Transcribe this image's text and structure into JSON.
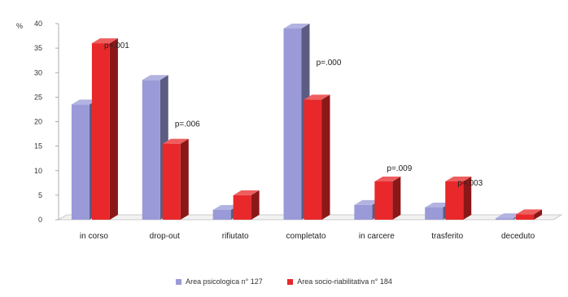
{
  "chart_data": {
    "type": "bar",
    "title": "",
    "xlabel": "",
    "ylabel": "%",
    "ylim": [
      0,
      40
    ],
    "y_ticks": [
      0,
      5,
      10,
      15,
      20,
      25,
      30,
      35,
      40
    ],
    "grid": false,
    "legend_position": "bottom",
    "three_d": true,
    "categories": [
      "in corso",
      "drop-out",
      "rifiutato",
      "completato",
      "in carcere",
      "trasferito",
      "deceduto"
    ],
    "series": [
      {
        "name": "Area psicologica n° 127",
        "color": "#9a9ad8",
        "values": [
          23.5,
          28.5,
          2,
          39,
          3,
          2.5,
          0.3
        ]
      },
      {
        "name": "Area socio-riabilitativa n° 184",
        "color": "#e8282a",
        "values": [
          36,
          15.5,
          5,
          24.5,
          7.8,
          7.8,
          1.1
        ]
      }
    ],
    "annotations": [
      {
        "text": "p=.001",
        "category": "in corso",
        "y": 35
      },
      {
        "text": "p=.006",
        "category": "drop-out",
        "y": 19
      },
      {
        "text": "p=.000",
        "category": "completato",
        "y": 31.5
      },
      {
        "text": "p=.009",
        "category": "in carcere",
        "y": 10
      },
      {
        "text": "p=.003",
        "category": "trasferito",
        "y": 7
      }
    ]
  }
}
